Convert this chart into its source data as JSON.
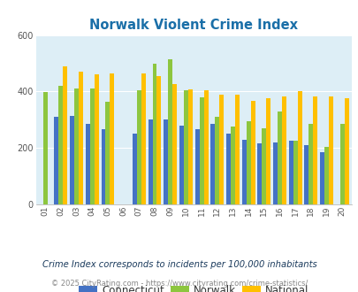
{
  "title": "Norwalk Violent Crime Index",
  "years": [
    "01",
    "02",
    "03",
    "04",
    "05",
    "06",
    "07",
    "08",
    "09",
    "10",
    "11",
    "12",
    "13",
    "14",
    "15",
    "16",
    "17",
    "18",
    "19",
    "20"
  ],
  "norwalk": [
    398,
    420,
    410,
    410,
    365,
    0,
    405,
    500,
    515,
    405,
    380,
    310,
    275,
    295,
    270,
    330,
    225,
    285,
    205,
    285
  ],
  "connecticut": [
    0,
    310,
    315,
    285,
    265,
    0,
    250,
    300,
    300,
    280,
    265,
    285,
    250,
    230,
    215,
    220,
    225,
    210,
    185,
    0
  ],
  "national": [
    0,
    490,
    470,
    460,
    465,
    0,
    465,
    455,
    425,
    408,
    405,
    390,
    390,
    368,
    375,
    383,
    400,
    383,
    383,
    375
  ],
  "norwalk_color": "#8dc63f",
  "connecticut_color": "#4472c4",
  "national_color": "#ffc000",
  "bg_color": "#ddeef6",
  "ylim": [
    0,
    600
  ],
  "yticks": [
    0,
    200,
    400,
    600
  ],
  "legend_labels": [
    "Norwalk",
    "Connecticut",
    "National"
  ],
  "footnote1": "Crime Index corresponds to incidents per 100,000 inhabitants",
  "footnote2": "© 2025 CityRating.com - https://www.cityrating.com/crime-statistics/",
  "bar_width": 0.28,
  "title_color": "#1a6fa8",
  "footnote1_color": "#1a3a5c",
  "footnote2_color": "#888888",
  "url_color": "#4472c4"
}
